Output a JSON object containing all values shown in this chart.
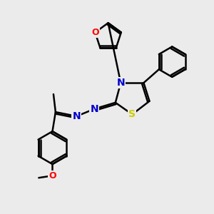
{
  "background_color": "#ebebeb",
  "atom_colors": {
    "O": "#ff0000",
    "N": "#0000cc",
    "S": "#cccc00",
    "C": "#000000"
  },
  "bond_color": "#000000",
  "bond_width": 1.8,
  "figsize": [
    3.0,
    3.0
  ],
  "dpi": 100
}
